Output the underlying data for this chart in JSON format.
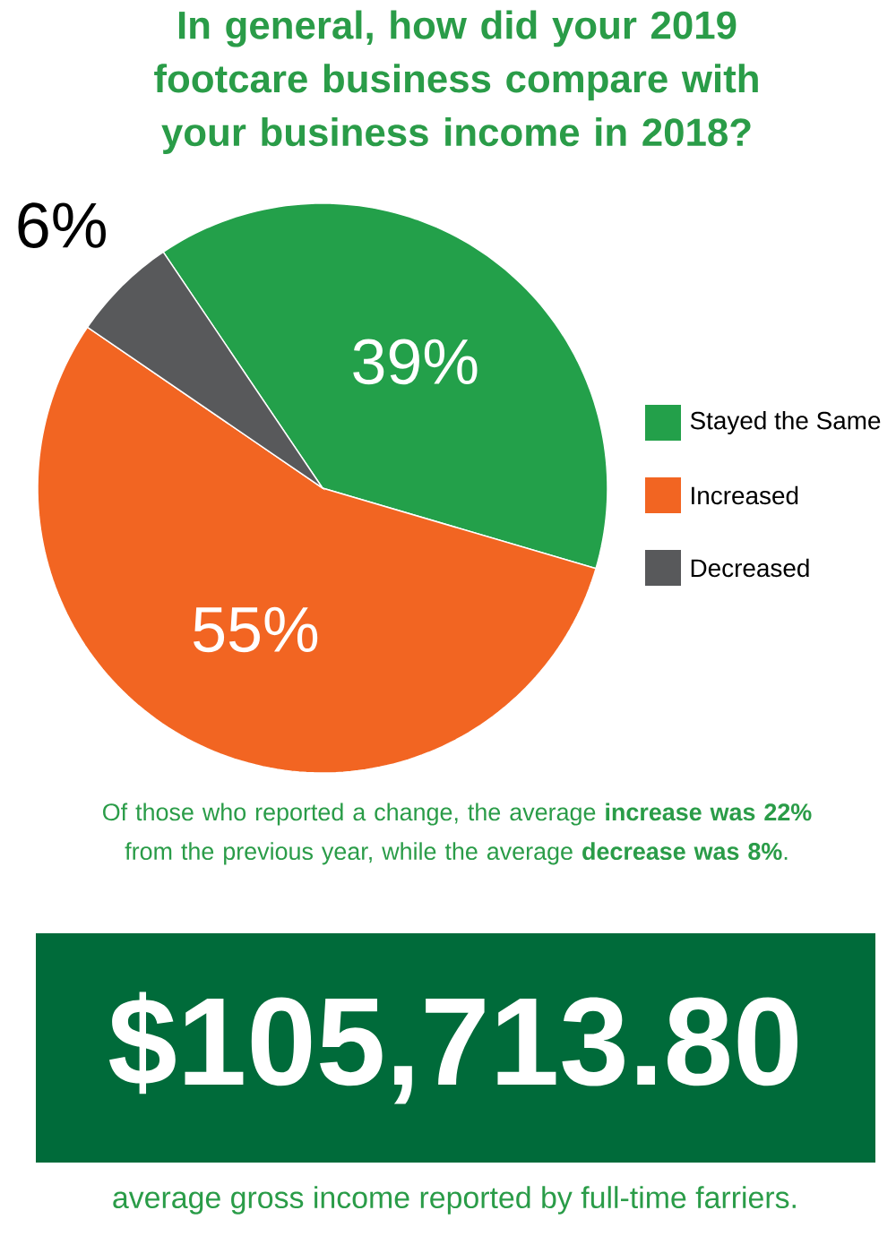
{
  "chart_data": {
    "type": "pie",
    "title": "In general, how did your 2019 footcare business compare with your business income in 2018?",
    "categories": [
      "Stayed the Same",
      "Increased",
      "Decreased"
    ],
    "values": [
      39,
      55,
      6
    ],
    "colors": [
      "#23a04a",
      "#f26522",
      "#58595b"
    ],
    "value_labels": [
      "39%",
      "55%",
      "6%"
    ],
    "legend": "right",
    "annotations": [
      "Of those who reported a change, the average **increase was 22%** from the previous year, while the average **decrease was 8%**.",
      "$105,713.80",
      "average gross income reported by full-time farriers."
    ]
  }
}
